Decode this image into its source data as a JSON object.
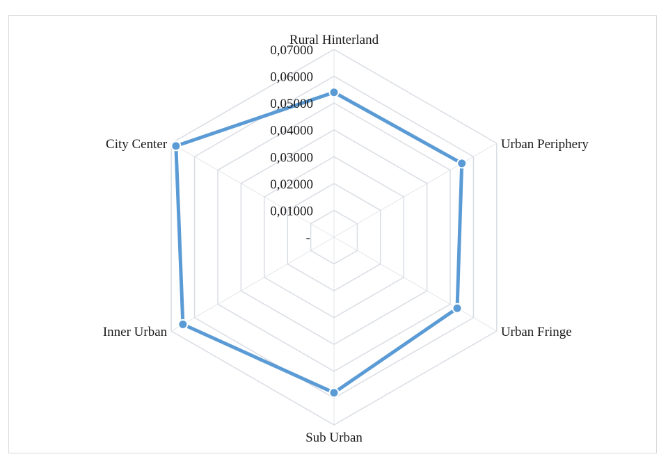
{
  "chart_data": {
    "type": "radar",
    "categories": [
      "Rural Hinterland",
      "Urban Periphery",
      "Urban Fringe",
      "Sub Urban",
      "Inner Urban",
      "City Center"
    ],
    "series": [
      {
        "name": "",
        "values": [
          0.054,
          0.055,
          0.053,
          0.058,
          0.065,
          0.068
        ],
        "color": "#5b9bd5"
      }
    ],
    "rlim": [
      0,
      0.07
    ],
    "ticks": [
      {
        "value": 0,
        "label": "-"
      },
      {
        "value": 0.01,
        "label": "0,01000"
      },
      {
        "value": 0.02,
        "label": "0,02000"
      },
      {
        "value": 0.03,
        "label": "0,03000"
      },
      {
        "value": 0.04,
        "label": "0,04000"
      },
      {
        "value": 0.05,
        "label": "0,05000"
      },
      {
        "value": 0.06,
        "label": "0,06000"
      },
      {
        "value": 0.07,
        "label": "0,07000"
      }
    ],
    "grid": true,
    "grid_color": "#d9dde3",
    "legend": "none",
    "title": ""
  }
}
